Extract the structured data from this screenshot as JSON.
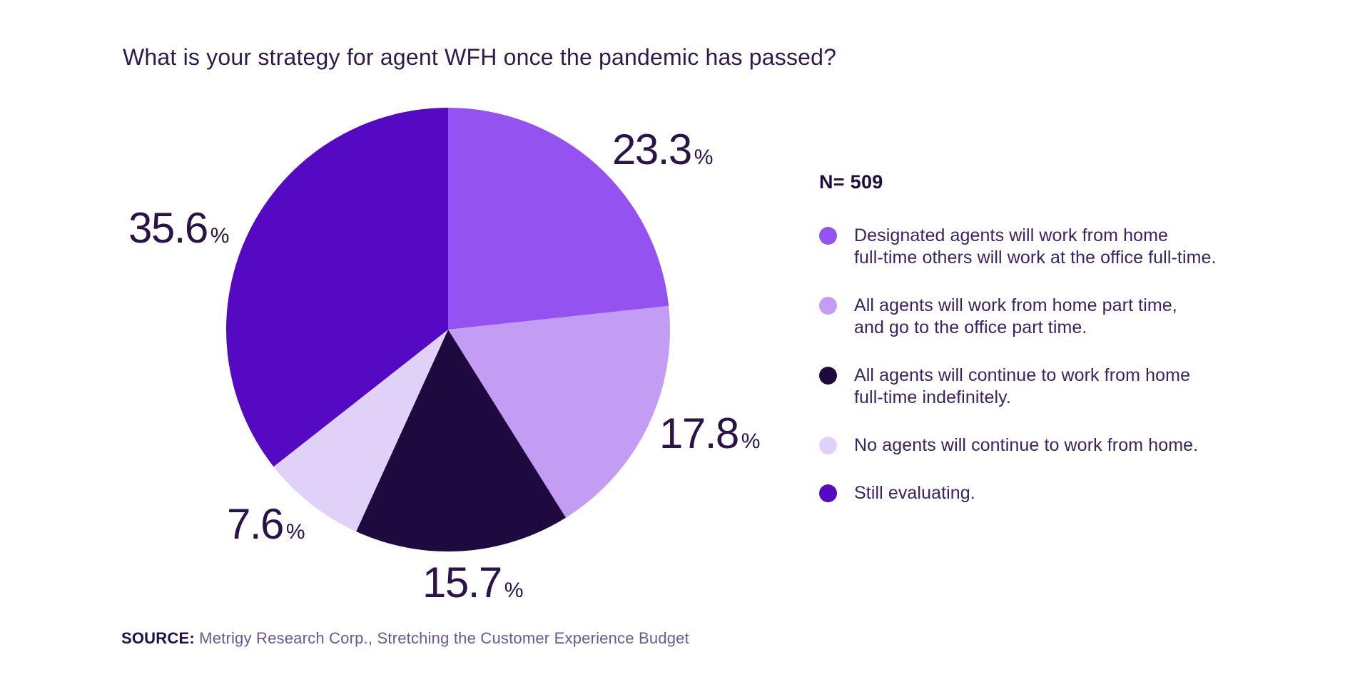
{
  "chart_data": {
    "type": "pie",
    "title": "What is your strategy for agent WFH once the pandemic has passed?",
    "sample_size": "N= 509",
    "percent_suffix": "%",
    "start_angle_deg": 0,
    "direction": "clockwise",
    "legend_position": "right",
    "slices": [
      {
        "label": "Designated agents will work from home\nfull-time others will work at the office full-time.",
        "value": 23.3,
        "display_value": "23.3",
        "color": "#9452f0"
      },
      {
        "label": "All agents will work from home part time,\nand go to the office part time.",
        "value": 17.8,
        "display_value": "17.8",
        "color": "#c39df3"
      },
      {
        "label": "All agents will continue to work from home\nfull-time indefinitely.",
        "value": 15.7,
        "display_value": "15.7",
        "color": "#1f0a40"
      },
      {
        "label": "No agents will continue to work from home.",
        "value": 7.6,
        "display_value": "7.6",
        "color": "#e0d1f8"
      },
      {
        "label": "Still evaluating.",
        "value": 35.6,
        "display_value": "35.6",
        "color": "#5509c2"
      }
    ],
    "source": {
      "label": "SOURCE:",
      "text": "Metrigy Research Corp., Stretching the Customer Experience Budget"
    }
  }
}
